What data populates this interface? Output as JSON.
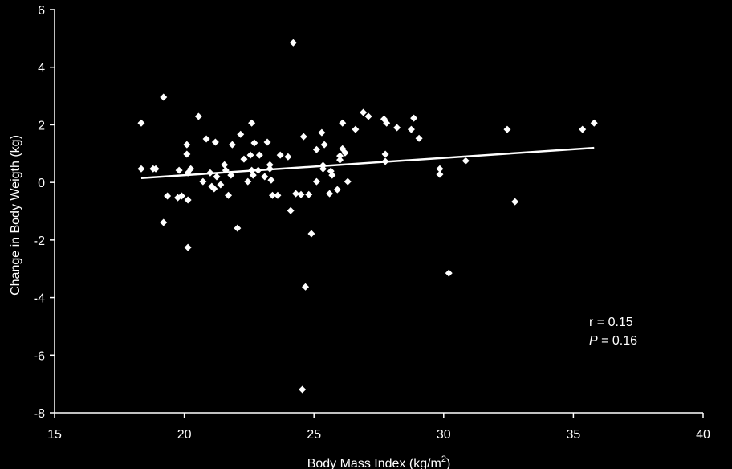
{
  "chart_data": {
    "type": "scatter",
    "x_label": [
      "Body Mass Index (kg/m",
      "2",
      ")"
    ],
    "y_label": "Change in Body Weigth (kg)",
    "xlim": [
      15,
      40
    ],
    "xticks": [
      15,
      20,
      25,
      30,
      35,
      40
    ],
    "ylim": [
      -8,
      6
    ],
    "yticks": [
      -8,
      -6,
      -4,
      -2,
      0,
      2,
      4,
      6
    ],
    "color": "#ffffff",
    "series": [
      {
        "x": [
          18.34,
          18.34,
          18.8,
          18.9,
          19.2,
          19.35,
          19.2,
          19.8,
          19.75,
          19.9,
          20.1,
          20.1,
          20.14,
          20.25,
          20.14,
          20.14,
          20.55,
          20.85,
          20.72,
          21.0,
          21.06,
          21.15,
          21.2,
          21.25,
          21.4,
          21.55,
          21.6,
          21.7,
          21.85,
          21.8,
          22.05,
          22.17,
          22.3,
          22.45,
          22.55,
          22.6,
          22.6,
          22.7,
          22.65,
          22.9,
          22.85,
          23.1,
          23.2,
          23.3,
          23.3,
          23.35,
          23.4,
          23.6,
          23.7,
          24.0,
          24.1,
          24.2,
          24.3,
          24.5,
          24.6,
          24.55,
          24.67,
          24.8,
          24.9,
          25.1,
          25.1,
          25.3,
          25.35,
          25.35,
          25.4,
          25.6,
          25.65,
          25.7,
          25.9,
          26.0,
          26.0,
          26.1,
          26.1,
          26.2,
          26.3,
          26.6,
          26.9,
          27.1,
          27.7,
          27.8,
          27.75,
          27.75,
          28.2,
          28.75,
          28.85,
          29.05,
          29.85,
          29.85,
          30.2,
          30.85,
          32.45,
          32.75,
          35.35,
          35.8
        ],
        "values": [
          2.06,
          0.47,
          0.47,
          0.47,
          2.96,
          -0.47,
          -1.39,
          0.42,
          -0.53,
          -0.47,
          1.31,
          0.98,
          0.33,
          0.47,
          -0.61,
          -2.26,
          2.29,
          1.51,
          0.03,
          0.33,
          -0.14,
          -0.22,
          1.4,
          0.2,
          -0.08,
          0.61,
          0.42,
          -0.45,
          1.31,
          0.25,
          -1.59,
          1.67,
          0.81,
          0.03,
          0.95,
          0.42,
          2.06,
          1.37,
          0.25,
          0.95,
          0.42,
          0.2,
          1.4,
          0.61,
          0.47,
          0.08,
          -0.45,
          -0.45,
          0.95,
          0.89,
          -0.98,
          4.85,
          -0.39,
          -0.42,
          1.59,
          -7.19,
          -3.63,
          -0.42,
          -1.78,
          1.14,
          0.03,
          1.73,
          0.59,
          0.47,
          1.31,
          -0.39,
          0.39,
          0.25,
          -0.25,
          0.92,
          0.78,
          2.06,
          1.17,
          1.03,
          0.03,
          1.84,
          2.43,
          2.29,
          2.2,
          2.06,
          0.98,
          0.73,
          1.9,
          1.84,
          2.23,
          1.53,
          0.47,
          0.28,
          -3.15,
          0.75,
          1.84,
          -0.67,
          1.84,
          2.06
        ]
      }
    ],
    "trendline": {
      "x": [
        18.34,
        35.8
      ],
      "y": [
        0.15,
        1.2
      ]
    },
    "annotations": [
      [
        "r = 0.15"
      ],
      [
        "P",
        " = 0.16"
      ]
    ]
  }
}
